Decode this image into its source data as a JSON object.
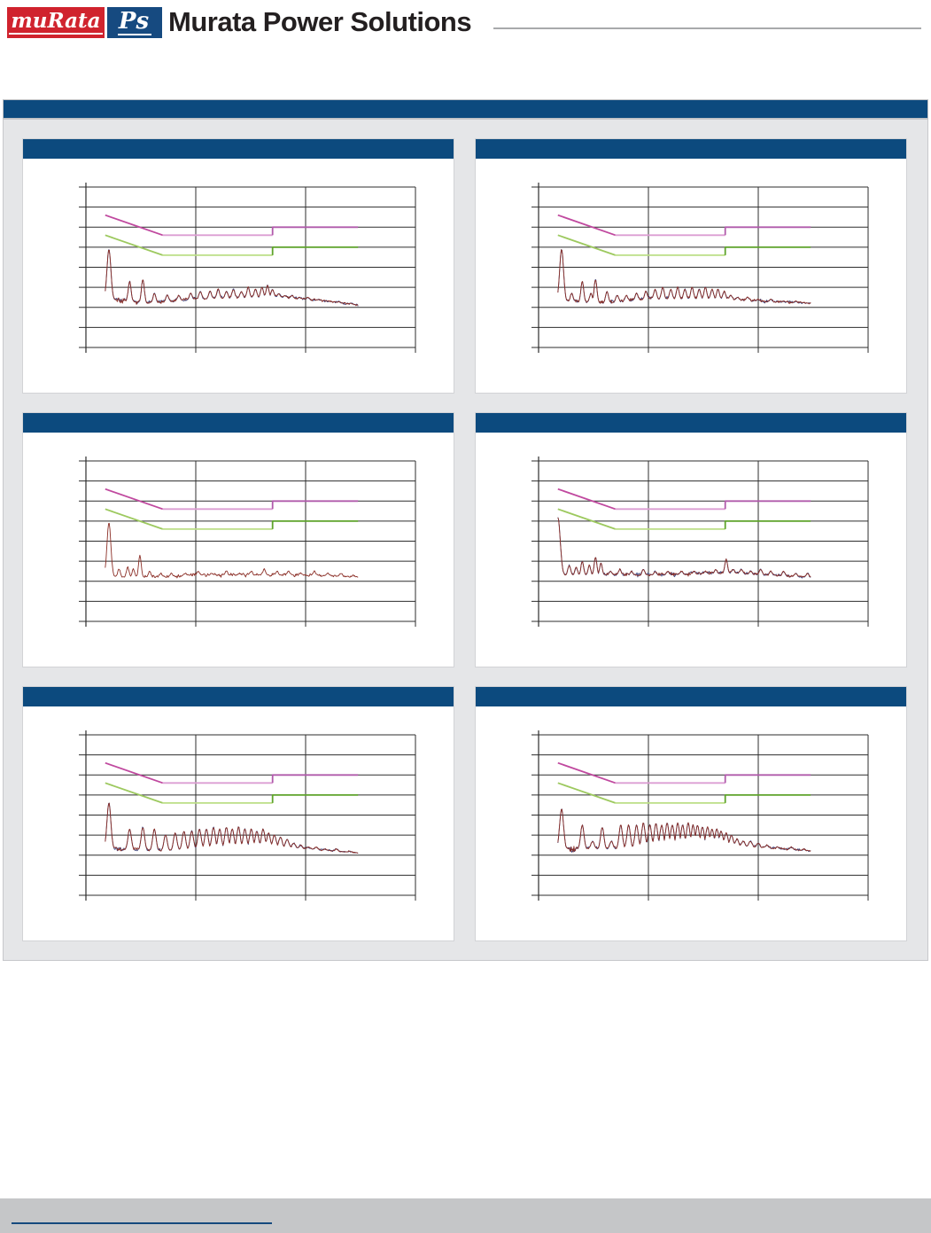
{
  "header": {
    "logo": {
      "murata_text": "muRata",
      "ps_text": "Ps"
    },
    "brand": "Murata Power Solutions"
  },
  "section_bar": {
    "title": ""
  },
  "colors": {
    "brand_red": "#d0232e",
    "navy": "#0c4a7e",
    "panel_gray": "#e5e6e8",
    "footer_gray": "#c5c6c8",
    "grid": "#2d2d2d",
    "trace_qp_blue": "#3a4680",
    "trace_avg_red": "#8b2e26"
  },
  "limits": {
    "qp": {
      "name": "quasi-peak-limit",
      "points": [
        [
          0.15,
          66
        ],
        [
          0.5,
          56
        ],
        [
          5,
          56
        ],
        [
          5,
          60
        ],
        [
          30,
          60
        ]
      ],
      "colors": [
        "#c0499f",
        "#dc9ed3",
        "#b05aab"
      ]
    },
    "avg": {
      "name": "average-limit",
      "points": [
        [
          0.15,
          56
        ],
        [
          0.5,
          46
        ],
        [
          5,
          46
        ],
        [
          5,
          50
        ],
        [
          30,
          50
        ]
      ],
      "colors": [
        "#9dc95f",
        "#bcdf86",
        "#5ea32b"
      ]
    }
  },
  "axes": {
    "x": {
      "scale": "log",
      "unit": "MHz",
      "min": 0.1,
      "max": 100,
      "decades": 3,
      "data_min": 0.15,
      "data_max": 30
    },
    "y": {
      "unit": "dBuV",
      "min": 0,
      "max": 80,
      "step": 10,
      "gridlines": 9
    }
  },
  "chart_data": [
    {
      "position": "top-left",
      "title": "",
      "type": "line",
      "trace": {
        "dual": true,
        "noise": 1.3,
        "peak_w": 1.6,
        "floor": [
          [
            0.15,
            24
          ],
          [
            0.4,
            22
          ],
          [
            1,
            24
          ],
          [
            5,
            25
          ],
          [
            9,
            24
          ],
          [
            15,
            23
          ],
          [
            30,
            21
          ]
        ],
        "peaks": [
          [
            0.162,
            49,
            2.2
          ],
          [
            0.25,
            33
          ],
          [
            0.33,
            34
          ],
          [
            0.42,
            27
          ],
          [
            0.55,
            26
          ],
          [
            0.7,
            26
          ],
          [
            0.9,
            27
          ],
          [
            1.1,
            28
          ],
          [
            1.35,
            28
          ],
          [
            1.6,
            29
          ],
          [
            1.9,
            28
          ],
          [
            2.2,
            29
          ],
          [
            2.6,
            28
          ],
          [
            3.0,
            30
          ],
          [
            3.5,
            29
          ],
          [
            4.0,
            30
          ],
          [
            4.5,
            31
          ],
          [
            5.0,
            29
          ],
          [
            5.7,
            27
          ],
          [
            6.5,
            26
          ],
          [
            7.5,
            26
          ],
          [
            8.8,
            25
          ],
          [
            10.5,
            25
          ],
          [
            13,
            24
          ],
          [
            16,
            23
          ],
          [
            20,
            23
          ],
          [
            26,
            22
          ]
        ]
      }
    },
    {
      "position": "top-right",
      "title": "",
      "type": "line",
      "trace": {
        "dual": true,
        "noise": 1.4,
        "peak_w": 1.6,
        "floor": [
          [
            0.15,
            23
          ],
          [
            0.4,
            22
          ],
          [
            1,
            24
          ],
          [
            5,
            24
          ],
          [
            10,
            23
          ],
          [
            30,
            22
          ]
        ],
        "peaks": [
          [
            0.162,
            49,
            2.2
          ],
          [
            0.2,
            27
          ],
          [
            0.25,
            33
          ],
          [
            0.3,
            27
          ],
          [
            0.33,
            34
          ],
          [
            0.42,
            28
          ],
          [
            0.52,
            26
          ],
          [
            0.63,
            26
          ],
          [
            0.78,
            27
          ],
          [
            0.95,
            28
          ],
          [
            1.15,
            29
          ],
          [
            1.35,
            30
          ],
          [
            1.6,
            29
          ],
          [
            1.85,
            30
          ],
          [
            2.15,
            29
          ],
          [
            2.5,
            30
          ],
          [
            2.9,
            29
          ],
          [
            3.3,
            30
          ],
          [
            3.8,
            29
          ],
          [
            4.3,
            29
          ],
          [
            4.9,
            28
          ],
          [
            5.6,
            26
          ],
          [
            6.5,
            25
          ],
          [
            8,
            25
          ],
          [
            10,
            24
          ],
          [
            13,
            24
          ],
          [
            17,
            23
          ],
          [
            22,
            23
          ],
          [
            28,
            22
          ]
        ]
      }
    },
    {
      "position": "mid-left",
      "title": "",
      "type": "line",
      "trace": {
        "dual": false,
        "noise": 1.0,
        "peak_w": 1.5,
        "floor": [
          [
            0.15,
            22
          ],
          [
            0.5,
            22
          ],
          [
            1,
            23
          ],
          [
            5,
            23
          ],
          [
            12,
            23
          ],
          [
            30,
            22
          ]
        ],
        "peaks": [
          [
            0.162,
            49,
            2.2
          ],
          [
            0.2,
            26
          ],
          [
            0.24,
            27
          ],
          [
            0.27,
            26
          ],
          [
            0.31,
            33
          ],
          [
            0.38,
            25
          ],
          [
            0.48,
            24
          ],
          [
            0.6,
            24
          ],
          [
            0.8,
            24
          ],
          [
            1.05,
            25
          ],
          [
            1.4,
            24
          ],
          [
            1.9,
            25
          ],
          [
            2.5,
            24
          ],
          [
            3.2,
            25
          ],
          [
            4.2,
            26
          ],
          [
            5.5,
            25
          ],
          [
            7,
            25
          ],
          [
            9,
            24
          ],
          [
            12,
            25
          ],
          [
            16,
            24
          ],
          [
            21,
            24
          ],
          [
            27,
            23
          ]
        ]
      }
    },
    {
      "position": "mid-right",
      "title": "",
      "type": "line",
      "trace": {
        "dual": true,
        "noise": 1.1,
        "peak_w": 1.5,
        "floor": [
          [
            0.15,
            23
          ],
          [
            0.5,
            23
          ],
          [
            1,
            23
          ],
          [
            6,
            24
          ],
          [
            12,
            23
          ],
          [
            30,
            22
          ]
        ],
        "peaks": [
          [
            0.15,
            52,
            2.6
          ],
          [
            0.19,
            28
          ],
          [
            0.22,
            27
          ],
          [
            0.25,
            30
          ],
          [
            0.29,
            28
          ],
          [
            0.33,
            32
          ],
          [
            0.37,
            29
          ],
          [
            0.45,
            25
          ],
          [
            0.55,
            26
          ],
          [
            0.7,
            25
          ],
          [
            0.9,
            26
          ],
          [
            1.15,
            25
          ],
          [
            1.5,
            25
          ],
          [
            2,
            25
          ],
          [
            2.6,
            25
          ],
          [
            3.3,
            25
          ],
          [
            4.1,
            26
          ],
          [
            5.1,
            31
          ],
          [
            5.9,
            26
          ],
          [
            7,
            26
          ],
          [
            8.5,
            25
          ],
          [
            10.5,
            26
          ],
          [
            13,
            25
          ],
          [
            17,
            25
          ],
          [
            22,
            24
          ],
          [
            28,
            24
          ]
        ]
      }
    },
    {
      "position": "bottom-left",
      "title": "",
      "type": "line",
      "trace": {
        "dual": true,
        "noise": 1.2,
        "peak_w": 1.9,
        "floor": [
          [
            0.15,
            23
          ],
          [
            0.5,
            22
          ],
          [
            1,
            23
          ],
          [
            5,
            24
          ],
          [
            10,
            23
          ],
          [
            30,
            21
          ]
        ],
        "peaks": [
          [
            0.162,
            46,
            2.2
          ],
          [
            0.25,
            33
          ],
          [
            0.33,
            34
          ],
          [
            0.42,
            33
          ],
          [
            0.53,
            30
          ],
          [
            0.65,
            31
          ],
          [
            0.78,
            32
          ],
          [
            0.92,
            32
          ],
          [
            1.08,
            33
          ],
          [
            1.25,
            33
          ],
          [
            1.45,
            34
          ],
          [
            1.65,
            33
          ],
          [
            1.9,
            34
          ],
          [
            2.15,
            33
          ],
          [
            2.45,
            34
          ],
          [
            2.8,
            33
          ],
          [
            3.2,
            33
          ],
          [
            3.6,
            32
          ],
          [
            4.1,
            33
          ],
          [
            4.6,
            31
          ],
          [
            5.2,
            30
          ],
          [
            5.9,
            29
          ],
          [
            6.8,
            28
          ],
          [
            7.8,
            26
          ],
          [
            9,
            25
          ],
          [
            10.5,
            24
          ],
          [
            12.5,
            24
          ],
          [
            15,
            23
          ],
          [
            19,
            23
          ],
          [
            25,
            22
          ]
        ]
      }
    },
    {
      "position": "bottom-right",
      "title": "",
      "type": "line",
      "trace": {
        "dual": true,
        "noise": 1.5,
        "peak_w": 1.9,
        "floor": [
          [
            0.15,
            23
          ],
          [
            0.5,
            23
          ],
          [
            1,
            24
          ],
          [
            4,
            25
          ],
          [
            8,
            24
          ],
          [
            15,
            23
          ],
          [
            30,
            22
          ]
        ],
        "peaks": [
          [
            0.162,
            43,
            2.2
          ],
          [
            0.25,
            35
          ],
          [
            0.31,
            27
          ],
          [
            0.38,
            34
          ],
          [
            0.46,
            27
          ],
          [
            0.56,
            35
          ],
          [
            0.66,
            35
          ],
          [
            0.78,
            35
          ],
          [
            0.9,
            36
          ],
          [
            1.03,
            35
          ],
          [
            1.17,
            36
          ],
          [
            1.32,
            35
          ],
          [
            1.48,
            36
          ],
          [
            1.65,
            35
          ],
          [
            1.85,
            36
          ],
          [
            2.05,
            35
          ],
          [
            2.3,
            36
          ],
          [
            2.55,
            35
          ],
          [
            2.8,
            35
          ],
          [
            3.1,
            34
          ],
          [
            3.45,
            34
          ],
          [
            3.8,
            33
          ],
          [
            4.2,
            33
          ],
          [
            4.6,
            32
          ],
          [
            5.1,
            31
          ],
          [
            5.7,
            30
          ],
          [
            6.4,
            28
          ],
          [
            7.3,
            27
          ],
          [
            8.5,
            27
          ],
          [
            10,
            26
          ],
          [
            12,
            25
          ],
          [
            15,
            24
          ],
          [
            20,
            24
          ],
          [
            26,
            23
          ]
        ]
      }
    }
  ]
}
